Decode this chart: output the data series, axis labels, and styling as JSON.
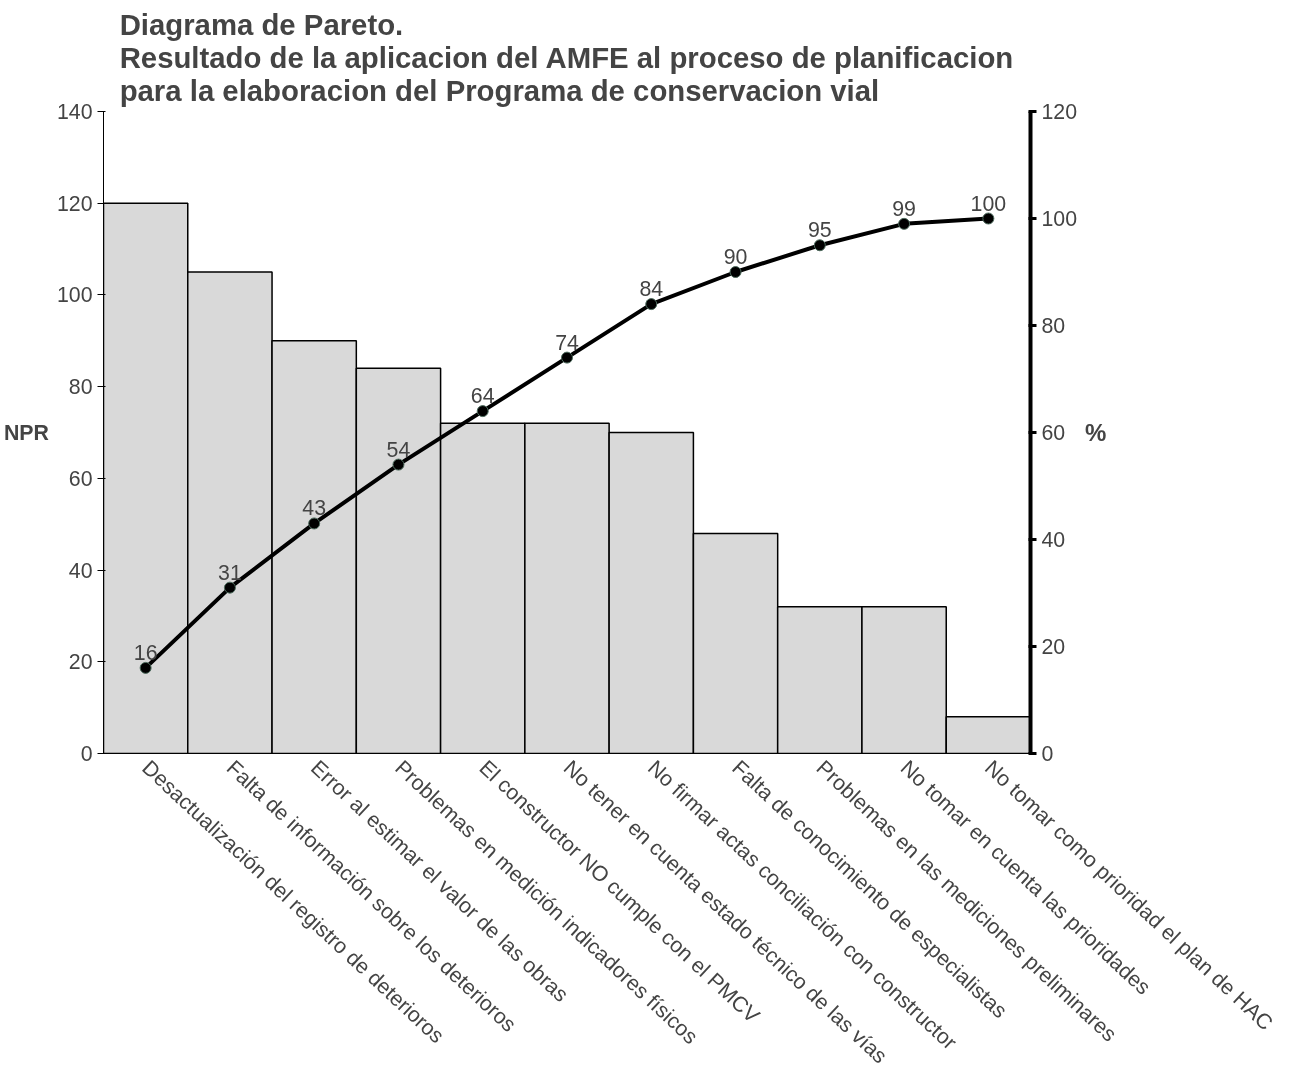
{
  "chart_data": {
    "type": "bar",
    "title": "Diagrama de Pareto.\nResultado de la aplicacion del AMFE al proceso de planificacion\npara la elaboracion del  Programa de conservacion vial",
    "ylabel": "NPR",
    "y2label": "%",
    "categories": [
      "Desactualización del registro de deterioros",
      "Falta de información sobre los deterioros",
      "Error al estimar el valor de las obras",
      "Problemas en medición indicadores físicos",
      "El constructor NO cumple con el PMCV",
      "No tener en cuenta estado técnico de las vías",
      "No firmar actas conciliación con constructor",
      "Falta de conocimiento de especialistas",
      "Problemas en las mediciones preliminares",
      "No tomar en cuenta las prioridades",
      "No tomar como prioridad el plan de HAC"
    ],
    "series": [
      {
        "color": "#d9d9d9",
        "values": [
          120,
          105,
          90,
          84,
          72,
          72,
          70,
          48,
          32,
          32,
          8
        ]
      },
      {
        "type": "line",
        "axis": "y2",
        "color": "#000000",
        "marker": "circle",
        "value_labels": [
          "16",
          "31",
          "43",
          "54",
          "64",
          "74",
          "84",
          "90",
          "95",
          "99",
          "100"
        ],
        "values": [
          16,
          31,
          43,
          54,
          64,
          74,
          84,
          90,
          95,
          99,
          100
        ]
      }
    ],
    "ylim": [
      0,
      140
    ],
    "yticks": [
      0,
      20,
      40,
      60,
      80,
      100,
      120,
      140
    ],
    "y2lim": [
      0,
      120
    ],
    "y2ticks": [
      0,
      20,
      40,
      60,
      80,
      100,
      120
    ],
    "grid": false
  }
}
